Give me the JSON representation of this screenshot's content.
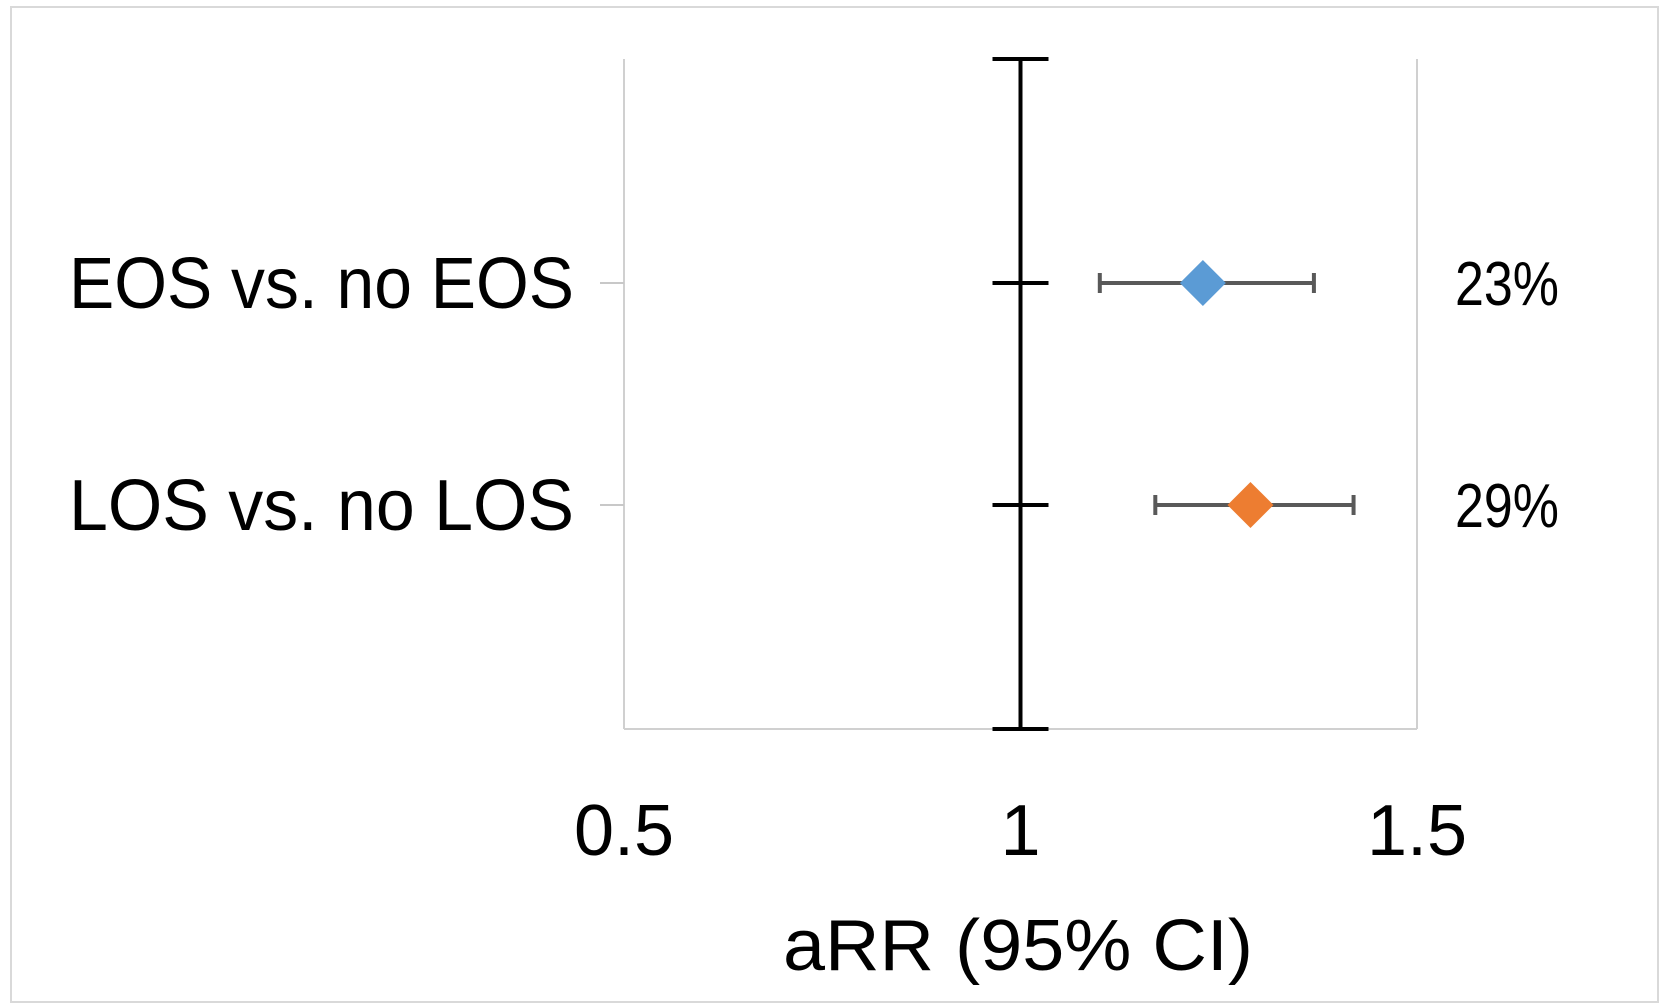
{
  "chart_data": {
    "type": "scatter",
    "title": "",
    "xlabel": "aRR (95% CI)",
    "ylabel": "",
    "xlim": [
      0.5,
      1.5
    ],
    "x_ticks": [
      "0.5",
      "1",
      "1.5"
    ],
    "reference_line": 1,
    "grid": false,
    "legend": "none",
    "categories": [
      "EOS vs. no EOS",
      "LOS vs. no LOS"
    ],
    "series": [
      {
        "estimate": 1.23,
        "ci_low": 1.1,
        "ci_high": 1.37,
        "label": "23%",
        "color": "#5b9bd5"
      },
      {
        "estimate": 1.29,
        "ci_low": 1.17,
        "ci_high": 1.42,
        "label": "29%",
        "color": "#ed7d31"
      }
    ]
  }
}
